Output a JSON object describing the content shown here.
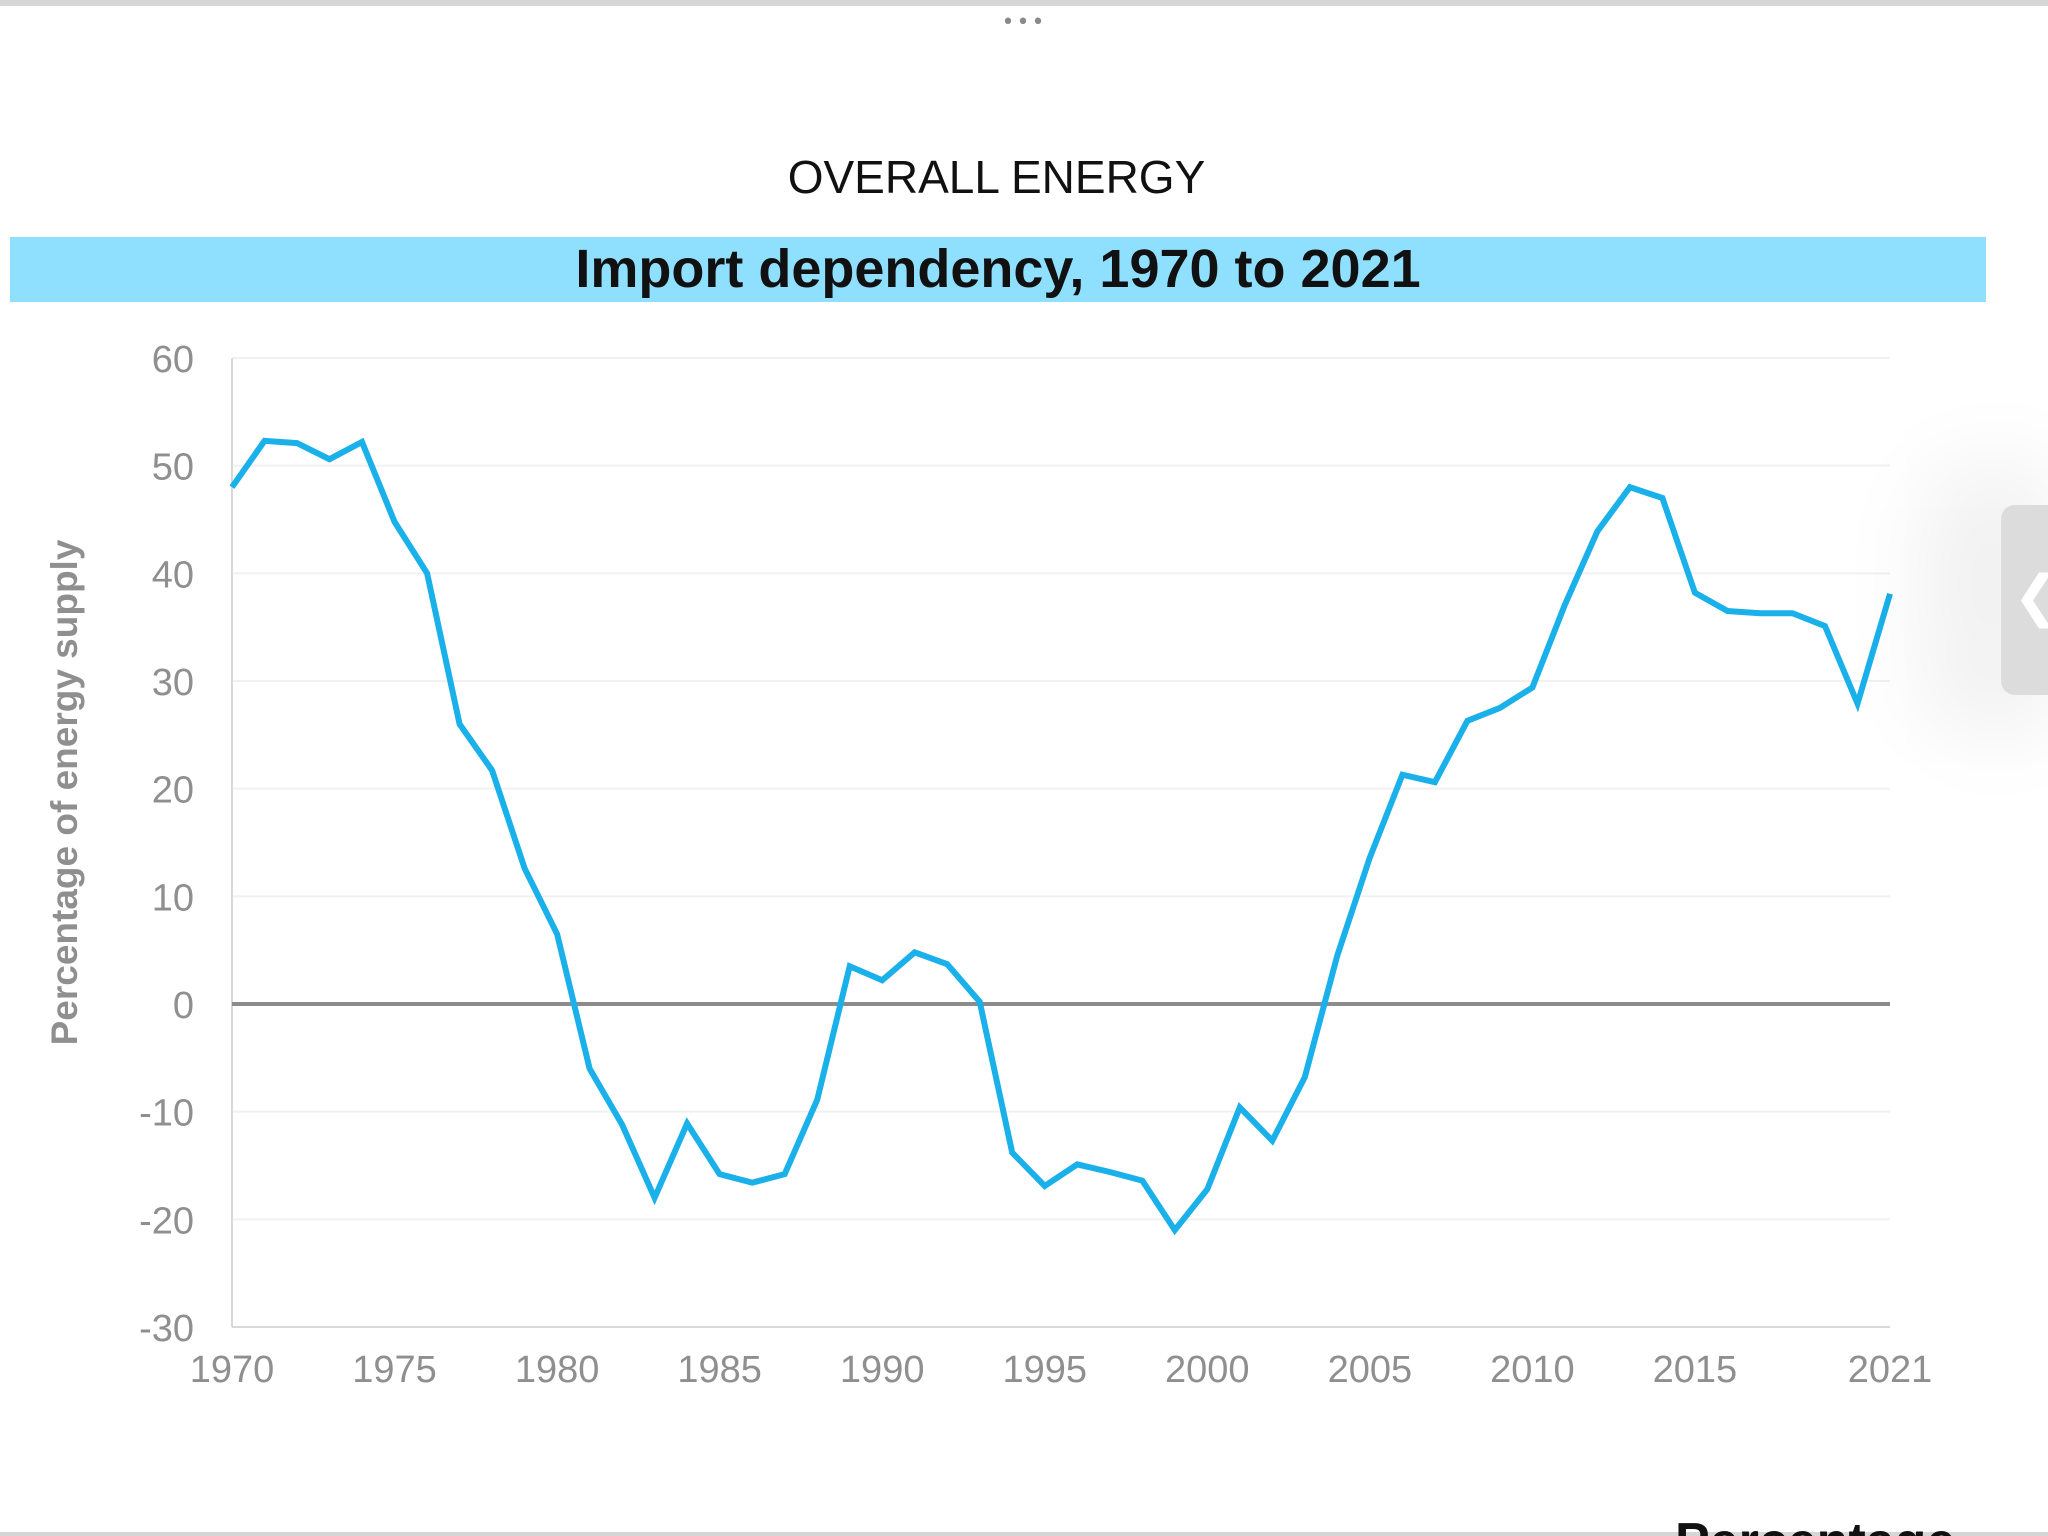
{
  "page": {
    "menu_dots": "•••",
    "kicker": "OVERALL ENERGY",
    "side_handle_icon": "chevron-left-icon",
    "side_handle_glyph": "❮",
    "cut_off_label": "Percentage"
  },
  "colors": {
    "banner": "#8fe0ff",
    "series": "#1ab0ea",
    "zero_line": "#8c8c8c",
    "tick_text": "#8f8f8f"
  },
  "chart_data": {
    "type": "line",
    "title": "Import dependency, 1970 to 2021",
    "xlabel": "",
    "ylabel": "Percentage of energy supply",
    "xlim": [
      1970,
      2021
    ],
    "ylim": [
      -30,
      60
    ],
    "x_ticks": [
      "1970",
      "1975",
      "1980",
      "1985",
      "1990",
      "1995",
      "2000",
      "2005",
      "2010",
      "2015",
      "2021"
    ],
    "y_ticks": [
      "60",
      "50",
      "40",
      "30",
      "20",
      "10",
      "0",
      "-10",
      "-20",
      "-30"
    ],
    "grid": true,
    "legend": "none",
    "series": [
      {
        "x": [
          1970,
          1971,
          1972,
          1973,
          1974,
          1975,
          1976,
          1977,
          1978,
          1979,
          1980,
          1981,
          1982,
          1983,
          1984,
          1985,
          1986,
          1987,
          1988,
          1989,
          1990,
          1991,
          1992,
          1993,
          1994,
          1995,
          1996,
          1997,
          1998,
          1999,
          2000,
          2001,
          2002,
          2003,
          2004,
          2005,
          2006,
          2007,
          2008,
          2009,
          2010,
          2011,
          2012,
          2013,
          2014,
          2015,
          2016,
          2017,
          2018,
          2019,
          2020,
          2021
        ],
        "values": [
          48,
          52.3,
          52.1,
          50.6,
          52.2,
          44.8,
          40,
          26,
          21.7,
          12.6,
          6.5,
          -6,
          -11.2,
          -18,
          -11.1,
          -15.8,
          -16.6,
          -15.8,
          -8.9,
          3.5,
          2.2,
          4.8,
          3.7,
          0.2,
          -13.8,
          -16.9,
          -14.9,
          -15.6,
          -16.4,
          -21,
          -17.2,
          -9.6,
          -12.7,
          -6.8,
          4.5,
          13.6,
          21.3,
          20.6,
          26.3,
          27.5,
          29.4,
          37.1,
          43.9,
          48,
          47,
          38.2,
          36.5,
          36.3,
          36.3,
          35.1,
          27.9,
          38.1
        ]
      }
    ]
  }
}
